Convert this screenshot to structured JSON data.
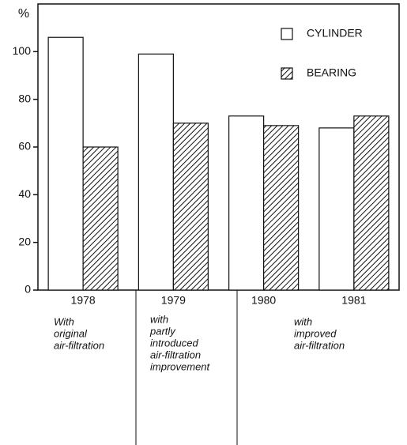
{
  "chart_data": {
    "type": "bar",
    "y_label": "%",
    "categories": [
      "1978",
      "1979",
      "1980",
      "1981"
    ],
    "series": [
      {
        "name": "CYLINDER",
        "color": "#ffffff",
        "hatch": false,
        "values": [
          106,
          99,
          73,
          68
        ]
      },
      {
        "name": "BEARING",
        "color": "#ffffff",
        "hatch": true,
        "values": [
          60,
          70,
          69,
          73
        ]
      }
    ],
    "ylim": [
      0,
      120
    ],
    "yticks": [
      0,
      20,
      40,
      60,
      80,
      100
    ],
    "annotations": [
      [
        "With",
        "original",
        "air-filtration"
      ],
      [
        "with",
        "partly",
        "introduced",
        "air-filtration",
        "improvement"
      ],
      [
        "with",
        "improved",
        "air-filtration"
      ]
    ]
  }
}
